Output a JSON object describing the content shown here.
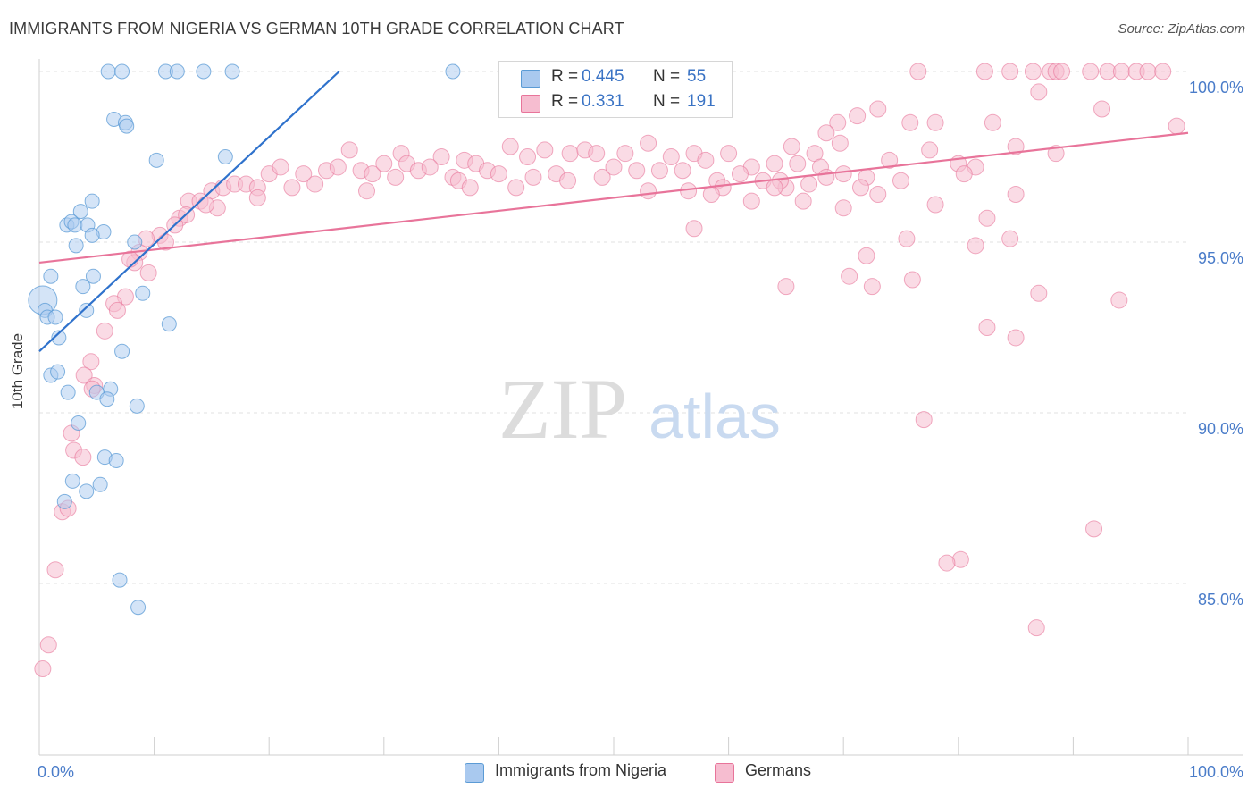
{
  "title": "IMMIGRANTS FROM NIGERIA VS GERMAN 10TH GRADE CORRELATION CHART",
  "source": "Source: ZipAtlas.com",
  "watermark": {
    "zip": "ZIP",
    "atlas": "atlas"
  },
  "legend_top": [
    {
      "r_label": "R =",
      "r_value": "0.445",
      "n_label": "N =",
      "n_value": "55",
      "color": "#5b9bd5"
    },
    {
      "r_label": "R =",
      "r_value": "0.331",
      "n_label": "N =",
      "n_value": "191",
      "color": "#e8749a"
    }
  ],
  "legend_bottom": [
    {
      "label": "Immigrants from Nigeria",
      "color": "#a9c9ef"
    },
    {
      "label": "Germans",
      "color": "#f6bdd0"
    }
  ],
  "chart_data": {
    "type": "scatter",
    "title": "IMMIGRANTS FROM NIGERIA VS GERMAN 10TH GRADE CORRELATION CHART",
    "xlabel": "",
    "ylabel": "10th Grade",
    "xlim": [
      0,
      100
    ],
    "ylim": [
      80.0,
      101.0
    ],
    "x_tick_labels": [
      "0.0%",
      "100.0%"
    ],
    "y_ticks": [
      85.0,
      90.0,
      95.0,
      100.0
    ],
    "y_tick_labels": [
      "85.0%",
      "90.0%",
      "95.0%",
      "100.0%"
    ],
    "grid": true,
    "legend_placement": "bottom",
    "colors": {
      "nigeria": "#5b9bd5",
      "nigeria_fill": "#a9c9ef",
      "germans": "#e8749a",
      "germans_fill": "#f6bdd0",
      "tick_label": "#4a7cc9"
    },
    "series": [
      {
        "name": "Immigrants from Nigeria",
        "r": 0.445,
        "n": 55,
        "trend": {
          "x": [
            0.0,
            26.1
          ],
          "y": [
            91.8,
            100.0
          ]
        },
        "points": [
          [
            6.0,
            100.0
          ],
          [
            7.2,
            100.0
          ],
          [
            11.0,
            100.0
          ],
          [
            12.0,
            100.0
          ],
          [
            14.3,
            100.0
          ],
          [
            16.8,
            100.0
          ],
          [
            36.0,
            100.0
          ],
          [
            6.5,
            98.6
          ],
          [
            7.5,
            98.5
          ],
          [
            7.6,
            98.4
          ],
          [
            10.2,
            97.4
          ],
          [
            16.2,
            97.5
          ],
          [
            4.6,
            96.2
          ],
          [
            3.6,
            95.9
          ],
          [
            2.4,
            95.5
          ],
          [
            2.8,
            95.6
          ],
          [
            3.1,
            95.5
          ],
          [
            4.2,
            95.5
          ],
          [
            5.6,
            95.3
          ],
          [
            4.6,
            95.2
          ],
          [
            3.2,
            94.9
          ],
          [
            8.3,
            95.0
          ],
          [
            1.0,
            94.0
          ],
          [
            4.7,
            94.0
          ],
          [
            3.8,
            93.7
          ],
          [
            9.0,
            93.5
          ],
          [
            0.3,
            93.3
          ],
          [
            0.5,
            93.0
          ],
          [
            0.7,
            92.8
          ],
          [
            1.4,
            92.8
          ],
          [
            4.1,
            93.0
          ],
          [
            11.3,
            92.6
          ],
          [
            1.7,
            92.2
          ],
          [
            7.2,
            91.8
          ],
          [
            1.0,
            91.1
          ],
          [
            1.6,
            91.2
          ],
          [
            2.5,
            90.6
          ],
          [
            5.0,
            90.6
          ],
          [
            6.2,
            90.7
          ],
          [
            5.9,
            90.4
          ],
          [
            8.5,
            90.2
          ],
          [
            3.4,
            89.7
          ],
          [
            5.7,
            88.7
          ],
          [
            6.7,
            88.6
          ],
          [
            2.9,
            88.0
          ],
          [
            5.3,
            87.9
          ],
          [
            4.1,
            87.7
          ],
          [
            2.2,
            87.4
          ],
          [
            7.0,
            85.1
          ],
          [
            8.6,
            84.3
          ]
        ]
      },
      {
        "name": "Germans",
        "r": 0.331,
        "n": 191,
        "trend": {
          "x": [
            0.0,
            100.0
          ],
          "y": [
            94.4,
            98.2
          ]
        },
        "points": [
          [
            76.5,
            100.0
          ],
          [
            82.3,
            100.0
          ],
          [
            84.5,
            100.0
          ],
          [
            86.5,
            100.0
          ],
          [
            88.0,
            100.0
          ],
          [
            88.5,
            100.0
          ],
          [
            89.0,
            100.0
          ],
          [
            91.5,
            100.0
          ],
          [
            93.0,
            100.0
          ],
          [
            94.2,
            100.0
          ],
          [
            95.5,
            100.0
          ],
          [
            96.5,
            100.0
          ],
          [
            97.8,
            100.0
          ],
          [
            87.0,
            99.4
          ],
          [
            92.5,
            98.9
          ],
          [
            73.0,
            98.9
          ],
          [
            71.2,
            98.7
          ],
          [
            69.5,
            98.5
          ],
          [
            75.8,
            98.5
          ],
          [
            78.0,
            98.5
          ],
          [
            68.5,
            98.2
          ],
          [
            83.0,
            98.5
          ],
          [
            99.0,
            98.4
          ],
          [
            69.7,
            97.9
          ],
          [
            67.5,
            97.6
          ],
          [
            65.5,
            97.8
          ],
          [
            53.0,
            97.9
          ],
          [
            41.0,
            97.8
          ],
          [
            44.0,
            97.7
          ],
          [
            42.5,
            97.5
          ],
          [
            46.2,
            97.6
          ],
          [
            47.5,
            97.7
          ],
          [
            48.5,
            97.6
          ],
          [
            51.0,
            97.6
          ],
          [
            55.0,
            97.5
          ],
          [
            57.0,
            97.6
          ],
          [
            58.0,
            97.4
          ],
          [
            60.0,
            97.6
          ],
          [
            62.0,
            97.2
          ],
          [
            64.0,
            97.3
          ],
          [
            66.0,
            97.3
          ],
          [
            68.0,
            97.2
          ],
          [
            70.0,
            97.0
          ],
          [
            72.0,
            96.9
          ],
          [
            74.0,
            97.4
          ],
          [
            80.0,
            97.3
          ],
          [
            81.5,
            97.2
          ],
          [
            88.5,
            97.6
          ],
          [
            85.0,
            97.8
          ],
          [
            77.5,
            97.7
          ],
          [
            27.0,
            97.7
          ],
          [
            31.5,
            97.6
          ],
          [
            35.0,
            97.5
          ],
          [
            37.0,
            97.4
          ],
          [
            38.0,
            97.3
          ],
          [
            20.0,
            97.0
          ],
          [
            21.0,
            97.2
          ],
          [
            23.0,
            97.0
          ],
          [
            25.0,
            97.1
          ],
          [
            26.0,
            97.2
          ],
          [
            28.0,
            97.1
          ],
          [
            29.0,
            97.0
          ],
          [
            30.0,
            97.3
          ],
          [
            32.0,
            97.3
          ],
          [
            33.0,
            97.1
          ],
          [
            34.0,
            97.2
          ],
          [
            36.0,
            96.9
          ],
          [
            39.0,
            97.1
          ],
          [
            40.0,
            97.0
          ],
          [
            43.0,
            96.9
          ],
          [
            45.0,
            97.0
          ],
          [
            49.0,
            96.9
          ],
          [
            50.0,
            97.2
          ],
          [
            52.0,
            97.1
          ],
          [
            54.0,
            97.1
          ],
          [
            56.0,
            97.1
          ],
          [
            59.0,
            96.8
          ],
          [
            61.0,
            97.0
          ],
          [
            63.0,
            96.8
          ],
          [
            65.0,
            96.6
          ],
          [
            67.0,
            96.7
          ],
          [
            15.0,
            96.5
          ],
          [
            16.0,
            96.6
          ],
          [
            17.0,
            96.7
          ],
          [
            18.0,
            96.7
          ],
          [
            19.0,
            96.6
          ],
          [
            13.0,
            96.2
          ],
          [
            14.0,
            96.2
          ],
          [
            22.0,
            96.6
          ],
          [
            24.0,
            96.7
          ],
          [
            31.0,
            96.9
          ],
          [
            41.5,
            96.6
          ],
          [
            46.0,
            96.8
          ],
          [
            36.5,
            96.8
          ],
          [
            56.5,
            96.5
          ],
          [
            59.5,
            96.6
          ],
          [
            64.5,
            96.8
          ],
          [
            68.5,
            96.9
          ],
          [
            71.5,
            96.6
          ],
          [
            75.0,
            96.8
          ],
          [
            80.5,
            97.0
          ],
          [
            15.5,
            96.0
          ],
          [
            12.2,
            95.7
          ],
          [
            11.8,
            95.5
          ],
          [
            12.8,
            95.8
          ],
          [
            14.5,
            96.1
          ],
          [
            10.5,
            95.2
          ],
          [
            11.0,
            95.0
          ],
          [
            9.3,
            95.1
          ],
          [
            8.7,
            94.7
          ],
          [
            8.3,
            94.4
          ],
          [
            7.9,
            94.5
          ],
          [
            19.0,
            96.3
          ],
          [
            28.5,
            96.5
          ],
          [
            37.5,
            96.6
          ],
          [
            53.0,
            96.5
          ],
          [
            58.5,
            96.4
          ],
          [
            64.0,
            96.6
          ],
          [
            66.5,
            96.2
          ],
          [
            78.0,
            96.1
          ],
          [
            70.0,
            96.0
          ],
          [
            73.0,
            96.4
          ],
          [
            85.0,
            96.4
          ],
          [
            82.5,
            95.7
          ],
          [
            84.5,
            95.1
          ],
          [
            81.5,
            94.9
          ],
          [
            75.5,
            95.1
          ],
          [
            72.0,
            94.6
          ],
          [
            62.0,
            96.2
          ],
          [
            9.5,
            94.1
          ],
          [
            7.5,
            93.4
          ],
          [
            6.5,
            93.2
          ],
          [
            6.8,
            93.0
          ],
          [
            5.7,
            92.4
          ],
          [
            57.0,
            95.4
          ],
          [
            65.0,
            93.7
          ],
          [
            70.5,
            94.0
          ],
          [
            72.5,
            93.7
          ],
          [
            76.0,
            93.9
          ],
          [
            87.0,
            93.5
          ],
          [
            94.0,
            93.3
          ],
          [
            82.5,
            92.5
          ],
          [
            85.0,
            92.2
          ],
          [
            4.5,
            91.5
          ],
          [
            3.9,
            91.1
          ],
          [
            4.8,
            90.8
          ],
          [
            4.6,
            90.7
          ],
          [
            77.0,
            89.8
          ],
          [
            2.8,
            89.4
          ],
          [
            3.0,
            88.9
          ],
          [
            3.8,
            88.7
          ],
          [
            2.0,
            87.1
          ],
          [
            2.5,
            87.2
          ],
          [
            91.8,
            86.6
          ],
          [
            80.2,
            85.7
          ],
          [
            79.0,
            85.6
          ],
          [
            1.4,
            85.4
          ],
          [
            86.8,
            83.7
          ],
          [
            0.8,
            83.2
          ],
          [
            0.3,
            82.5
          ]
        ]
      }
    ]
  }
}
